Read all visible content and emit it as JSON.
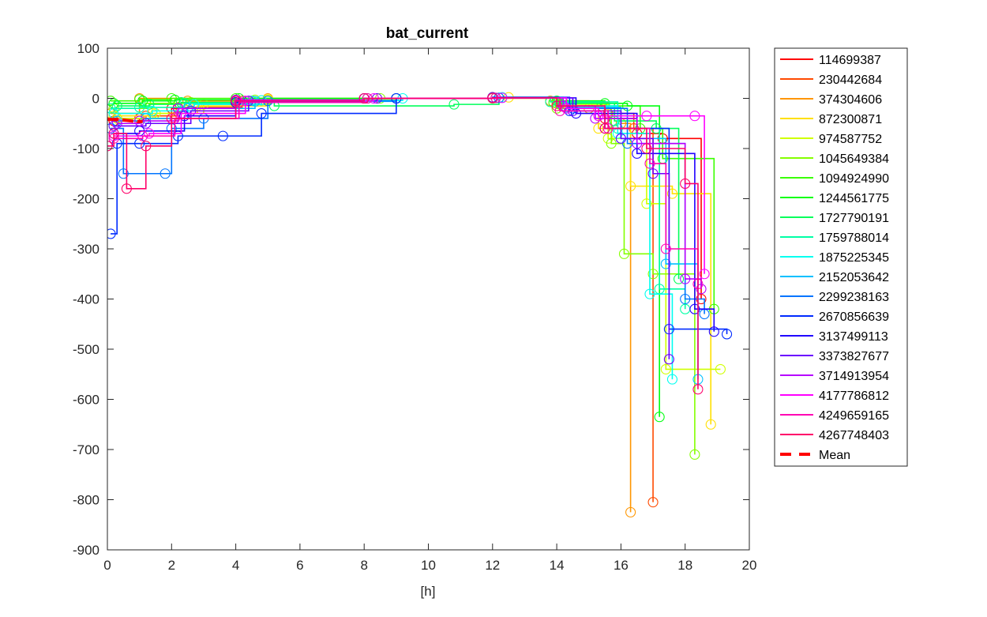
{
  "chart_data": {
    "type": "line",
    "title": "bat_current",
    "xlabel": "[h]",
    "ylabel": "",
    "xlim": [
      0,
      20
    ],
    "ylim": [
      -900,
      100
    ],
    "xticks": [
      "0",
      "2",
      "4",
      "6",
      "8",
      "10",
      "12",
      "14",
      "16",
      "18",
      "20"
    ],
    "yticks": [
      "100",
      "0",
      "-100",
      "-200",
      "-300",
      "-400",
      "-500",
      "-600",
      "-700",
      "-800",
      "-900"
    ],
    "grid": false,
    "legend_position": "outside-right",
    "series": [
      {
        "name": "114699387",
        "color": "#ff0000",
        "x": [
          0.2,
          1.0,
          2.0,
          4.0,
          8.0,
          12.0,
          14.0,
          15.5,
          16.5,
          17.3,
          18.5
        ],
        "y": [
          -45,
          -40,
          -20,
          -5,
          0,
          2,
          -10,
          -40,
          -70,
          -80,
          -400
        ]
      },
      {
        "name": "230442684",
        "color": "#ff4a00",
        "x": [
          0.3,
          1.2,
          2.2,
          4.2,
          8.0,
          12.0,
          14.2,
          15.6,
          16.4,
          17.0
        ],
        "y": [
          -40,
          -35,
          -18,
          -5,
          0,
          1,
          -8,
          -30,
          -60,
          -805
        ]
      },
      {
        "name": "374304606",
        "color": "#ff9600",
        "x": [
          0.1,
          1.0,
          2.5,
          5.0,
          9.0,
          12.0,
          13.8,
          15.0,
          16.0,
          16.3
        ],
        "y": [
          -30,
          0,
          -5,
          0,
          0,
          0,
          -5,
          -20,
          -50,
          -825
        ]
      },
      {
        "name": "872300871",
        "color": "#ffe000",
        "x": [
          0.2,
          1.4,
          2.8,
          5.0,
          9.0,
          12.5,
          14.0,
          15.3,
          16.3,
          17.6,
          18.8
        ],
        "y": [
          -35,
          -30,
          -15,
          -3,
          0,
          2,
          -10,
          -60,
          -175,
          -190,
          -650
        ]
      },
      {
        "name": "974587752",
        "color": "#d0ff00",
        "x": [
          0.3,
          1.5,
          3.0,
          5.0,
          9.0,
          12.0,
          14.1,
          15.6,
          16.8,
          17.4,
          19.1
        ],
        "y": [
          -40,
          -30,
          -12,
          -2,
          0,
          1,
          -12,
          -80,
          -210,
          -540,
          -540
        ]
      },
      {
        "name": "1045649384",
        "color": "#85ff00",
        "x": [
          0.2,
          1.2,
          2.6,
          4.6,
          8.5,
          12.0,
          14.0,
          15.7,
          16.1,
          17.0,
          18.3
        ],
        "y": [
          -20,
          -10,
          -8,
          -3,
          0,
          1,
          -20,
          -90,
          -310,
          -350,
          -710
        ]
      },
      {
        "name": "1094924990",
        "color": "#3aff00",
        "x": [
          0.1,
          1.0,
          2.0,
          4.0,
          8.0,
          12.0,
          13.9,
          15.4,
          16.6,
          17.3,
          18.9
        ],
        "y": [
          -5,
          -2,
          0,
          0,
          0,
          1,
          -8,
          -15,
          -60,
          -120,
          -420
        ]
      },
      {
        "name": "1244561775",
        "color": "#00ff10",
        "x": [
          0.2,
          1.1,
          2.1,
          4.1,
          8.1,
          12.1,
          14.0,
          15.5,
          16.2,
          17.2
        ],
        "y": [
          -10,
          -5,
          -3,
          0,
          0,
          1,
          -5,
          -10,
          -15,
          -635
        ]
      },
      {
        "name": "1727790191",
        "color": "#00ff5b",
        "x": [
          0.3,
          1.3,
          2.3,
          5.2,
          10.8,
          12.2,
          14.1,
          15.8,
          17.1,
          17.8
        ],
        "y": [
          -15,
          -12,
          -8,
          -15,
          -12,
          1,
          -10,
          -45,
          -60,
          -360
        ]
      },
      {
        "name": "1759788014",
        "color": "#00ffa6",
        "x": [
          0.1,
          1.0,
          2.4,
          4.5,
          9.0,
          12.2,
          13.8,
          15.9,
          17.2,
          18.0
        ],
        "y": [
          -20,
          -18,
          -10,
          -5,
          0,
          1,
          -7,
          -60,
          -380,
          -420
        ]
      },
      {
        "name": "1875225345",
        "color": "#00fff0",
        "x": [
          0.2,
          1.4,
          2.7,
          4.8,
          9.2,
          12.3,
          14.2,
          15.9,
          16.9,
          17.6
        ],
        "y": [
          -30,
          -25,
          -12,
          -4,
          0,
          2,
          -15,
          -70,
          -390,
          -560
        ]
      },
      {
        "name": "2152053642",
        "color": "#00c0ff",
        "x": [
          0.3,
          1.2,
          2.5,
          4.6,
          9.0,
          12.0,
          14.3,
          16.0,
          17.4,
          18.4
        ],
        "y": [
          -45,
          -40,
          -20,
          -6,
          0,
          1,
          -18,
          -80,
          -330,
          -560
        ]
      },
      {
        "name": "2299238163",
        "color": "#0075ff",
        "x": [
          0.1,
          0.5,
          1.8,
          2.0,
          3.0,
          5.0,
          9.0,
          12.2,
          14.5,
          16.2,
          18.0,
          18.6
        ],
        "y": [
          -60,
          -150,
          -150,
          -60,
          -40,
          -5,
          0,
          1,
          -20,
          -90,
          -400,
          -430
        ]
      },
      {
        "name": "2670856639",
        "color": "#002bff",
        "x": [
          0.1,
          0.3,
          1.0,
          2.2,
          3.6,
          4.8,
          9.0,
          12.0,
          14.4,
          15.5,
          17.5,
          19.3
        ],
        "y": [
          -270,
          -90,
          -90,
          -75,
          -75,
          -30,
          0,
          2,
          -25,
          -60,
          -460,
          -470
        ]
      },
      {
        "name": "3137499113",
        "color": "#2000ff",
        "x": [
          0.2,
          1.0,
          2.4,
          4.0,
          8.0,
          12.0,
          14.6,
          16.5,
          18.3,
          18.9
        ],
        "y": [
          -70,
          -65,
          -35,
          -8,
          0,
          1,
          -30,
          -110,
          -420,
          -465
        ]
      },
      {
        "name": "3373827677",
        "color": "#6b00ff",
        "x": [
          0.2,
          1.2,
          2.6,
          4.4,
          8.4,
          12.0,
          14.5,
          16.0,
          17.0,
          17.5
        ],
        "y": [
          -55,
          -50,
          -25,
          -5,
          0,
          1,
          -25,
          -80,
          -150,
          -520
        ]
      },
      {
        "name": "3714913954",
        "color": "#b600ff",
        "x": [
          0.3,
          1.0,
          2.2,
          4.0,
          8.0,
          12.0,
          14.2,
          15.2,
          16.5,
          18.0,
          18.5
        ],
        "y": [
          -50,
          -45,
          -20,
          -3,
          0,
          1,
          -15,
          -40,
          -90,
          -360,
          -380
        ]
      },
      {
        "name": "4177786812",
        "color": "#ff00ff",
        "x": [
          0.2,
          1.3,
          2.3,
          4.3,
          8.3,
          12.3,
          14.3,
          15.3,
          16.8,
          18.3,
          18.6
        ],
        "y": [
          -75,
          -70,
          -30,
          -5,
          0,
          1,
          -20,
          -35,
          -35,
          -35,
          -350
        ]
      },
      {
        "name": "4249659165",
        "color": "#ff00b4",
        "x": [
          0.2,
          1.1,
          2.1,
          4.1,
          8.1,
          12.1,
          14.1,
          15.6,
          16.9,
          17.4,
          18.4
        ],
        "y": [
          -80,
          -75,
          -40,
          -8,
          0,
          1,
          -25,
          -60,
          -130,
          -300,
          -370
        ]
      },
      {
        "name": "4267748403",
        "color": "#ff0069",
        "x": [
          0.0,
          0.2,
          0.6,
          1.2,
          2.0,
          4.0,
          8.0,
          12.0,
          14.0,
          15.5,
          16.8,
          18.0,
          18.4
        ],
        "y": [
          -95,
          -70,
          -180,
          -95,
          -40,
          -5,
          0,
          1,
          -15,
          -60,
          -100,
          -170,
          -580
        ]
      }
    ],
    "mean": {
      "name": "Mean",
      "color": "#ff0000",
      "x": [
        0.0,
        0.3,
        0.6,
        0.9,
        1.1
      ],
      "y": [
        -42,
        -42,
        -44,
        -46,
        -46
      ]
    }
  }
}
